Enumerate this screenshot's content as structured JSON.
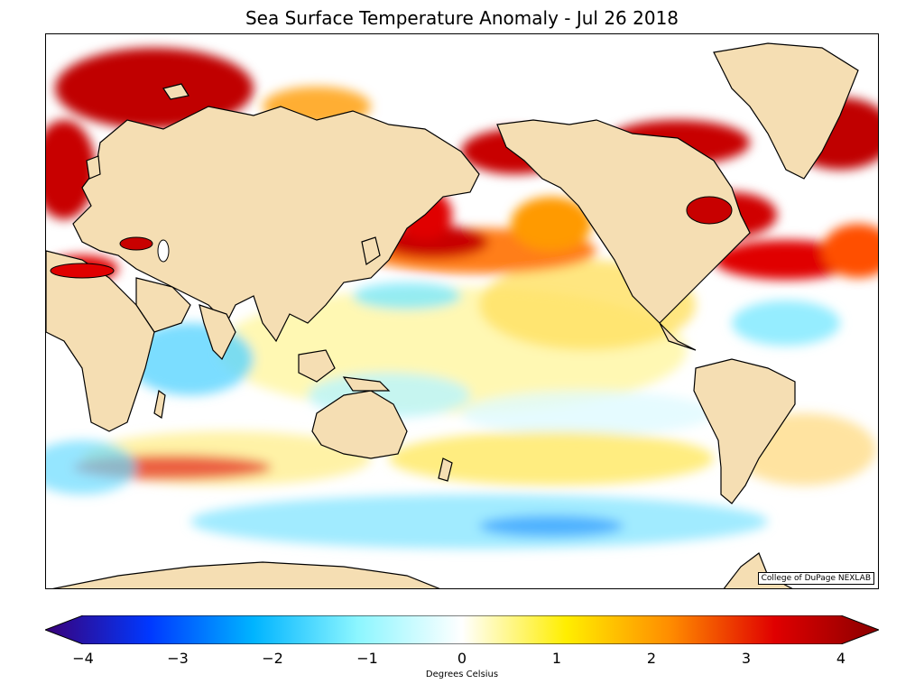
{
  "title": "Sea Surface Temperature Anomaly - Jul 26 2018",
  "credit": "College of DuPage NEXLAB",
  "colorbar": {
    "label": "Degrees Celsius",
    "min": -4,
    "max": 4,
    "ticks": [
      "−4",
      "−3",
      "−2",
      "−1",
      "0",
      "1",
      "2",
      "3",
      "4"
    ],
    "colors": [
      "#3a0078",
      "#0038ff",
      "#00b4ff",
      "#8cf6ff",
      "#ffffff",
      "#ffee00",
      "#ff8c00",
      "#e00000",
      "#8a0000"
    ]
  },
  "colors": {
    "land": "#f5deb3",
    "ocean_neutral": "#ffffff"
  }
}
